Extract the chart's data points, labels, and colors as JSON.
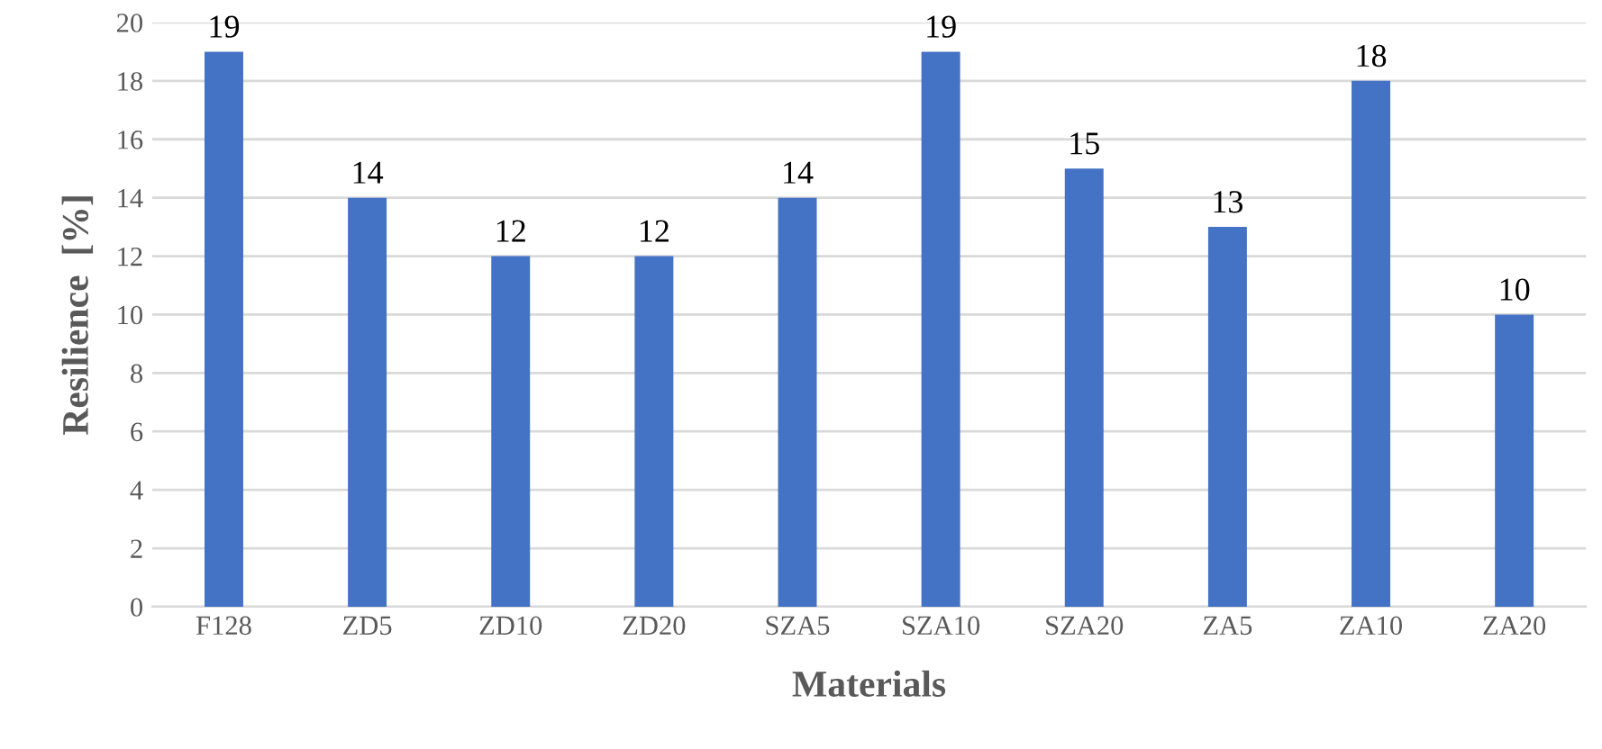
{
  "chart_data": {
    "type": "bar",
    "xlabel": "Materials",
    "ylabel": "Resilience  [%]",
    "categories": [
      "F128",
      "ZD5",
      "ZD10",
      "ZD20",
      "SZA5",
      "SZA10",
      "SZA20",
      "ZA5",
      "ZA10",
      "ZA20"
    ],
    "values": [
      19,
      14,
      12,
      12,
      14,
      19,
      15,
      13,
      18,
      10
    ],
    "color": "#4472c4",
    "ylim": [
      0,
      20
    ],
    "yticks": [
      0,
      2,
      4,
      6,
      8,
      10,
      12,
      14,
      16,
      18,
      20
    ],
    "grid": "y",
    "data_labels": true
  }
}
